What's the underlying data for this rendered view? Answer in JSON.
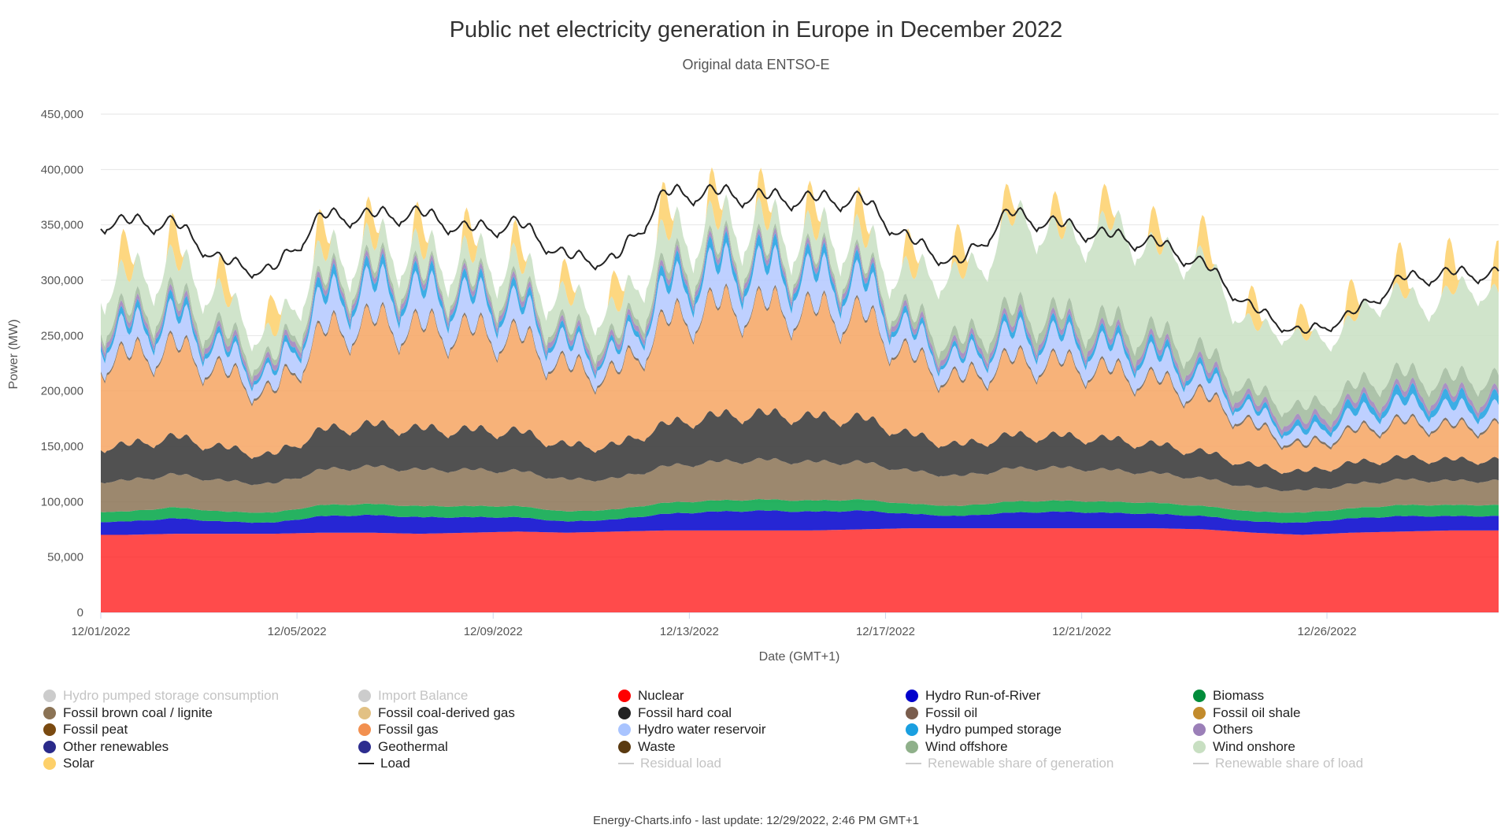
{
  "chart_data": {
    "type": "area",
    "title": "Public net electricity generation in Europe in December 2022",
    "subtitle": "Original data ENTSO-E",
    "ylabel": "Power (MW)",
    "xlabel": "Date (GMT+1)",
    "ylim": [
      0,
      450000
    ],
    "y_ticks": [
      "0",
      "50,000",
      "100,000",
      "150,000",
      "200,000",
      "250,000",
      "300,000",
      "350,000",
      "400,000",
      "450,000"
    ],
    "x_range": [
      "2022-12-01",
      "2022-12-29"
    ],
    "x_ticks": [
      "12/01/2022",
      "12/05/2022",
      "12/09/2022",
      "12/13/2022",
      "12/17/2022",
      "12/21/2022",
      "12/26/2022"
    ],
    "grid": true,
    "legend_position": "bottom",
    "x_days": [
      "2022-12-01",
      "2022-12-02",
      "2022-12-03",
      "2022-12-04",
      "2022-12-05",
      "2022-12-06",
      "2022-12-07",
      "2022-12-08",
      "2022-12-09",
      "2022-12-10",
      "2022-12-11",
      "2022-12-12",
      "2022-12-13",
      "2022-12-14",
      "2022-12-15",
      "2022-12-16",
      "2022-12-17",
      "2022-12-18",
      "2022-12-19",
      "2022-12-20",
      "2022-12-21",
      "2022-12-22",
      "2022-12-23",
      "2022-12-24",
      "2022-12-25",
      "2022-12-26",
      "2022-12-27",
      "2022-12-28"
    ],
    "series": [
      {
        "name": "Nuclear",
        "color": "#ff2b2b",
        "values": [
          70000,
          71000,
          71000,
          71000,
          72000,
          72000,
          71000,
          72000,
          73000,
          72000,
          73000,
          74000,
          74000,
          74000,
          74000,
          75000,
          76000,
          76000,
          76000,
          76000,
          76000,
          76000,
          75000,
          72000,
          70000,
          72000,
          73000,
          74000
        ]
      },
      {
        "name": "Hydro Run-of-River",
        "color": "#0000cc",
        "values": [
          12000,
          14000,
          11000,
          10000,
          15000,
          16000,
          15000,
          14000,
          13000,
          10000,
          11000,
          15000,
          17000,
          18000,
          17000,
          17000,
          13000,
          11000,
          14000,
          15000,
          14000,
          13000,
          12000,
          10000,
          11000,
          13000,
          14000,
          13000
        ]
      },
      {
        "name": "Biomass",
        "color": "#00a545",
        "values": [
          9000,
          10000,
          9000,
          9000,
          10000,
          10000,
          10000,
          10000,
          10000,
          9000,
          9000,
          10000,
          10000,
          10000,
          10000,
          10000,
          9000,
          9000,
          10000,
          10000,
          10000,
          10000,
          9000,
          9000,
          9000,
          9000,
          10000,
          10000
        ]
      },
      {
        "name": "Fossil brown coal / lignite",
        "color": "#8b7355",
        "values": [
          28000,
          30000,
          28000,
          26000,
          32000,
          34000,
          33000,
          33000,
          32000,
          29000,
          28000,
          33000,
          35000,
          36000,
          35000,
          34000,
          30000,
          27000,
          30000,
          30000,
          29000,
          27000,
          25000,
          22000,
          20000,
          22000,
          23000,
          22000
        ]
      },
      {
        "name": "Fossil hard coal",
        "color": "#333333",
        "values": [
          32000,
          34000,
          30000,
          26000,
          36000,
          38000,
          37000,
          36000,
          36000,
          31000,
          30000,
          38000,
          42000,
          42000,
          41000,
          40000,
          33000,
          28000,
          30000,
          29000,
          28000,
          26000,
          24000,
          20000,
          17000,
          19000,
          20000,
          19000
        ]
      },
      {
        "name": "Fossil gas",
        "color": "#f6a462",
        "values": [
          80000,
          82000,
          68000,
          55000,
          88000,
          94000,
          92000,
          90000,
          86000,
          70000,
          64000,
          92000,
          100000,
          98000,
          96000,
          94000,
          70000,
          58000,
          68000,
          66000,
          62000,
          58000,
          50000,
          35000,
          22000,
          28000,
          32000,
          30000
        ]
      },
      {
        "name": "Fossil oil",
        "color": "#6b5a4a",
        "values": [
          2000,
          2000,
          2000,
          2000,
          2000,
          2000,
          2000,
          2000,
          2000,
          2000,
          2000,
          2000,
          2000,
          2000,
          2000,
          2000,
          2000,
          2000,
          2000,
          2000,
          2000,
          2000,
          2000,
          2000,
          2000,
          2000,
          2000,
          2000
        ]
      },
      {
        "name": "Hydro water reservoir",
        "color": "#b3c8ff",
        "values": [
          22000,
          26000,
          18000,
          14000,
          28000,
          30000,
          30000,
          28000,
          26000,
          18000,
          16000,
          28000,
          32000,
          32000,
          30000,
          28000,
          20000,
          16000,
          22000,
          22000,
          20000,
          20000,
          16000,
          12000,
          10000,
          14000,
          16000,
          15000
        ]
      },
      {
        "name": "Hydro pumped storage",
        "color": "#1a9fe0",
        "values": [
          6000,
          7000,
          5000,
          4000,
          8000,
          8000,
          8000,
          7000,
          7000,
          5000,
          4000,
          8000,
          9000,
          9000,
          8000,
          8000,
          5000,
          4000,
          6000,
          6000,
          6000,
          6000,
          5000,
          4000,
          5000,
          7000,
          8000,
          8000
        ]
      },
      {
        "name": "Others",
        "color": "#9b7fb8",
        "values": [
          5000,
          5000,
          5000,
          5000,
          5000,
          5000,
          5000,
          5000,
          5000,
          5000,
          5000,
          5000,
          5000,
          5000,
          5000,
          5000,
          5000,
          5000,
          5000,
          5000,
          5000,
          5000,
          5000,
          5000,
          5000,
          5000,
          5000,
          5000
        ]
      },
      {
        "name": "Wind offshore",
        "color": "#9fb89b",
        "values": [
          6000,
          7000,
          7000,
          5000,
          5000,
          5000,
          4000,
          4000,
          5000,
          5000,
          6000,
          6000,
          5000,
          4000,
          4000,
          4000,
          6000,
          9000,
          10000,
          10000,
          11000,
          12000,
          12000,
          10000,
          12000,
          13000,
          14000,
          14000
        ]
      },
      {
        "name": "Wind onshore",
        "color": "#c8dfc2",
        "values": [
          28000,
          32000,
          28000,
          22000,
          22000,
          20000,
          20000,
          20000,
          22000,
          24000,
          26000,
          28000,
          24000,
          22000,
          22000,
          22000,
          36000,
          60000,
          76000,
          78000,
          80000,
          82000,
          76000,
          62000,
          60000,
          62000,
          70000,
          76000
        ]
      },
      {
        "name": "Solar",
        "color": "#fdd06a",
        "values": [
          15000,
          15000,
          13000,
          14000,
          14000,
          13000,
          14000,
          14000,
          12000,
          12000,
          13000,
          17000,
          16000,
          15000,
          15000,
          14000,
          14000,
          18000,
          12000,
          12000,
          13000,
          13000,
          15000,
          14000,
          12000,
          15000,
          18000,
          20000
        ]
      }
    ],
    "load": {
      "name": "Load",
      "color": "#222222",
      "values": [
        357000,
        356000,
        320000,
        312000,
        362000,
        363000,
        365000,
        350000,
        356000,
        325000,
        322000,
        383000,
        384000,
        380000,
        378000,
        378000,
        340000,
        318000,
        365000,
        355000,
        345000,
        338000,
        318000,
        277000,
        255000,
        272000,
        305000,
        310000
      ]
    },
    "legend": [
      {
        "label": "Hydro pumped storage consumption",
        "color": "#cccccc",
        "marker": "dot",
        "enabled": false
      },
      {
        "label": "Import Balance",
        "color": "#cccccc",
        "marker": "dot",
        "enabled": false
      },
      {
        "label": "Nuclear",
        "color": "#ff0000",
        "marker": "dot",
        "enabled": true
      },
      {
        "label": "Hydro Run-of-River",
        "color": "#0000cc",
        "marker": "dot",
        "enabled": true
      },
      {
        "label": "Biomass",
        "color": "#008c3a",
        "marker": "dot",
        "enabled": true
      },
      {
        "label": "Fossil brown coal / lignite",
        "color": "#8b7355",
        "marker": "dot",
        "enabled": true
      },
      {
        "label": "Fossil coal-derived gas",
        "color": "#e2c184",
        "marker": "dot",
        "enabled": true
      },
      {
        "label": "Fossil hard coal",
        "color": "#222222",
        "marker": "dot",
        "enabled": true
      },
      {
        "label": "Fossil oil",
        "color": "#7a5d4d",
        "marker": "dot",
        "enabled": true
      },
      {
        "label": "Fossil oil shale",
        "color": "#c28b2c",
        "marker": "dot",
        "enabled": true
      },
      {
        "label": "Fossil peat",
        "color": "#7a4a10",
        "marker": "dot",
        "enabled": true
      },
      {
        "label": "Fossil gas",
        "color": "#f29050",
        "marker": "dot",
        "enabled": true
      },
      {
        "label": "Hydro water reservoir",
        "color": "#a9c4ff",
        "marker": "dot",
        "enabled": true
      },
      {
        "label": "Hydro pumped storage",
        "color": "#1a9fe0",
        "marker": "dot",
        "enabled": true
      },
      {
        "label": "Others",
        "color": "#9b7fb8",
        "marker": "dot",
        "enabled": true
      },
      {
        "label": "Other renewables",
        "color": "#2a2a8a",
        "marker": "dot",
        "enabled": true
      },
      {
        "label": "Geothermal",
        "color": "#2d2d8f",
        "marker": "dot",
        "enabled": true
      },
      {
        "label": "Waste",
        "color": "#5a3a10",
        "marker": "dot",
        "enabled": true
      },
      {
        "label": "Wind offshore",
        "color": "#8fb08a",
        "marker": "dot",
        "enabled": true
      },
      {
        "label": "Wind onshore",
        "color": "#c8dfc2",
        "marker": "dot",
        "enabled": true
      },
      {
        "label": "Solar",
        "color": "#fdd06a",
        "marker": "dot",
        "enabled": true
      },
      {
        "label": "Load",
        "color": "#222222",
        "marker": "line",
        "enabled": true
      },
      {
        "label": "Residual load",
        "color": "#cccccc",
        "marker": "line",
        "enabled": false
      },
      {
        "label": "Renewable share of generation",
        "color": "#cccccc",
        "marker": "line",
        "enabled": false
      },
      {
        "label": "Renewable share of load",
        "color": "#cccccc",
        "marker": "line",
        "enabled": false
      }
    ]
  },
  "footer": {
    "credit": "Energy-Charts.info - last update: 12/29/2022, 2:46 PM GMT+1"
  }
}
